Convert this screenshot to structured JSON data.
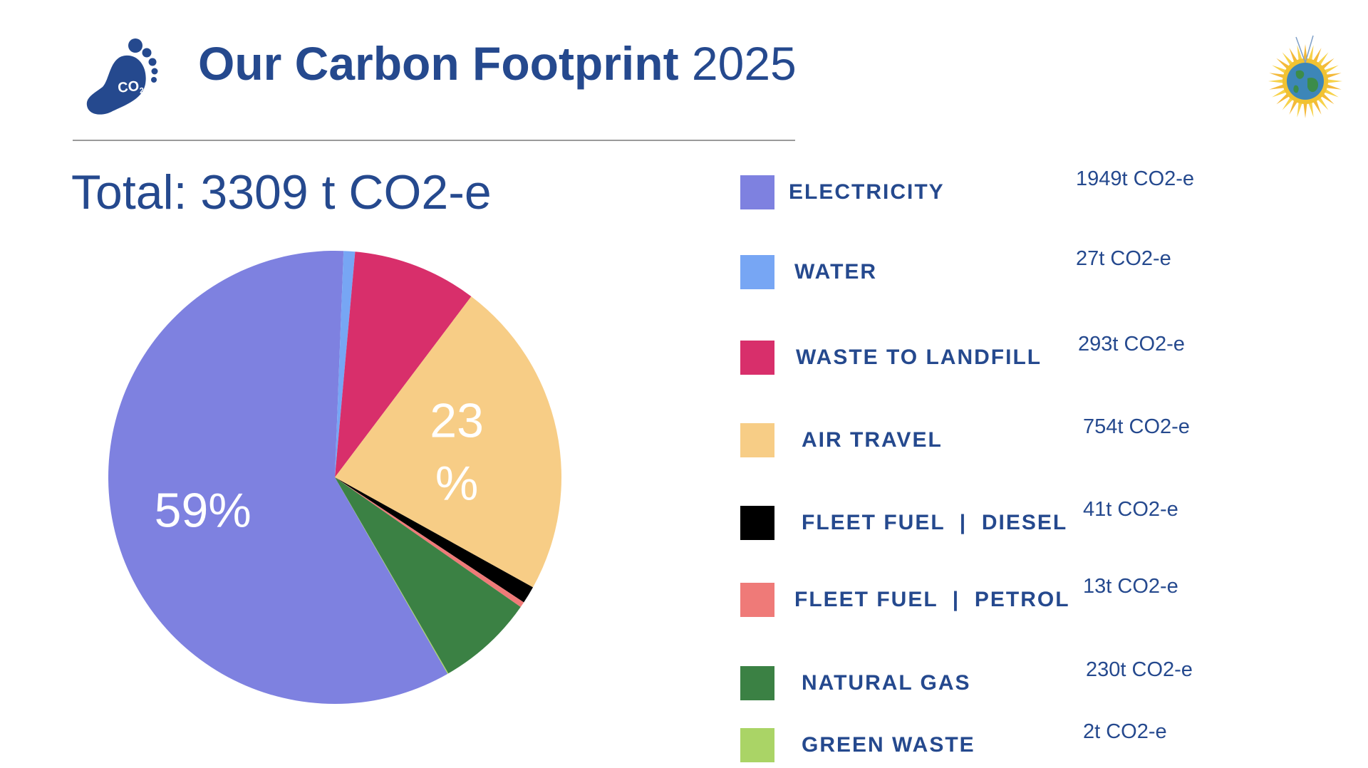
{
  "header": {
    "title_bold": "Our Carbon Footprint",
    "title_year": "2025",
    "footprint_icon_text": "CO2"
  },
  "total_label": "Total: 3309 t CO2-e",
  "chart_data": {
    "type": "pie",
    "unit": "t CO2-e",
    "total": 3309,
    "slices": [
      {
        "label": "ELECTRICITY",
        "value": 1949,
        "value_text": "1949t CO2-e",
        "color": "#7e81e0",
        "pct_label": "59%"
      },
      {
        "label": "WATER",
        "value": 27,
        "value_text": "27t CO2-e",
        "color": "#77a6f4",
        "pct_label": ""
      },
      {
        "label": "WASTE TO LANDFILL",
        "value": 293,
        "value_text": "293t CO2-e",
        "color": "#d82f6b",
        "pct_label": ""
      },
      {
        "label": "AIR TRAVEL",
        "value": 754,
        "value_text": "754t CO2-e",
        "color": "#f7cd86",
        "pct_label": "23\n%"
      },
      {
        "label": "FLEET FUEL  |  DIESEL",
        "value": 41,
        "value_text": "41t CO2-e",
        "color": "#000000",
        "pct_label": ""
      },
      {
        "label": "FLEET FUEL  |  PETROL",
        "value": 13,
        "value_text": "13t CO2-e",
        "color": "#ef7a78",
        "pct_label": ""
      },
      {
        "label": "NATURAL GAS",
        "value": 230,
        "value_text": "230t CO2-e",
        "color": "#3b8144",
        "pct_label": ""
      },
      {
        "label": "GREEN WASTE",
        "value": 2,
        "value_text": "2t CO2-e",
        "color": "#aad466",
        "pct_label": ""
      }
    ],
    "legend_placement": "right"
  }
}
